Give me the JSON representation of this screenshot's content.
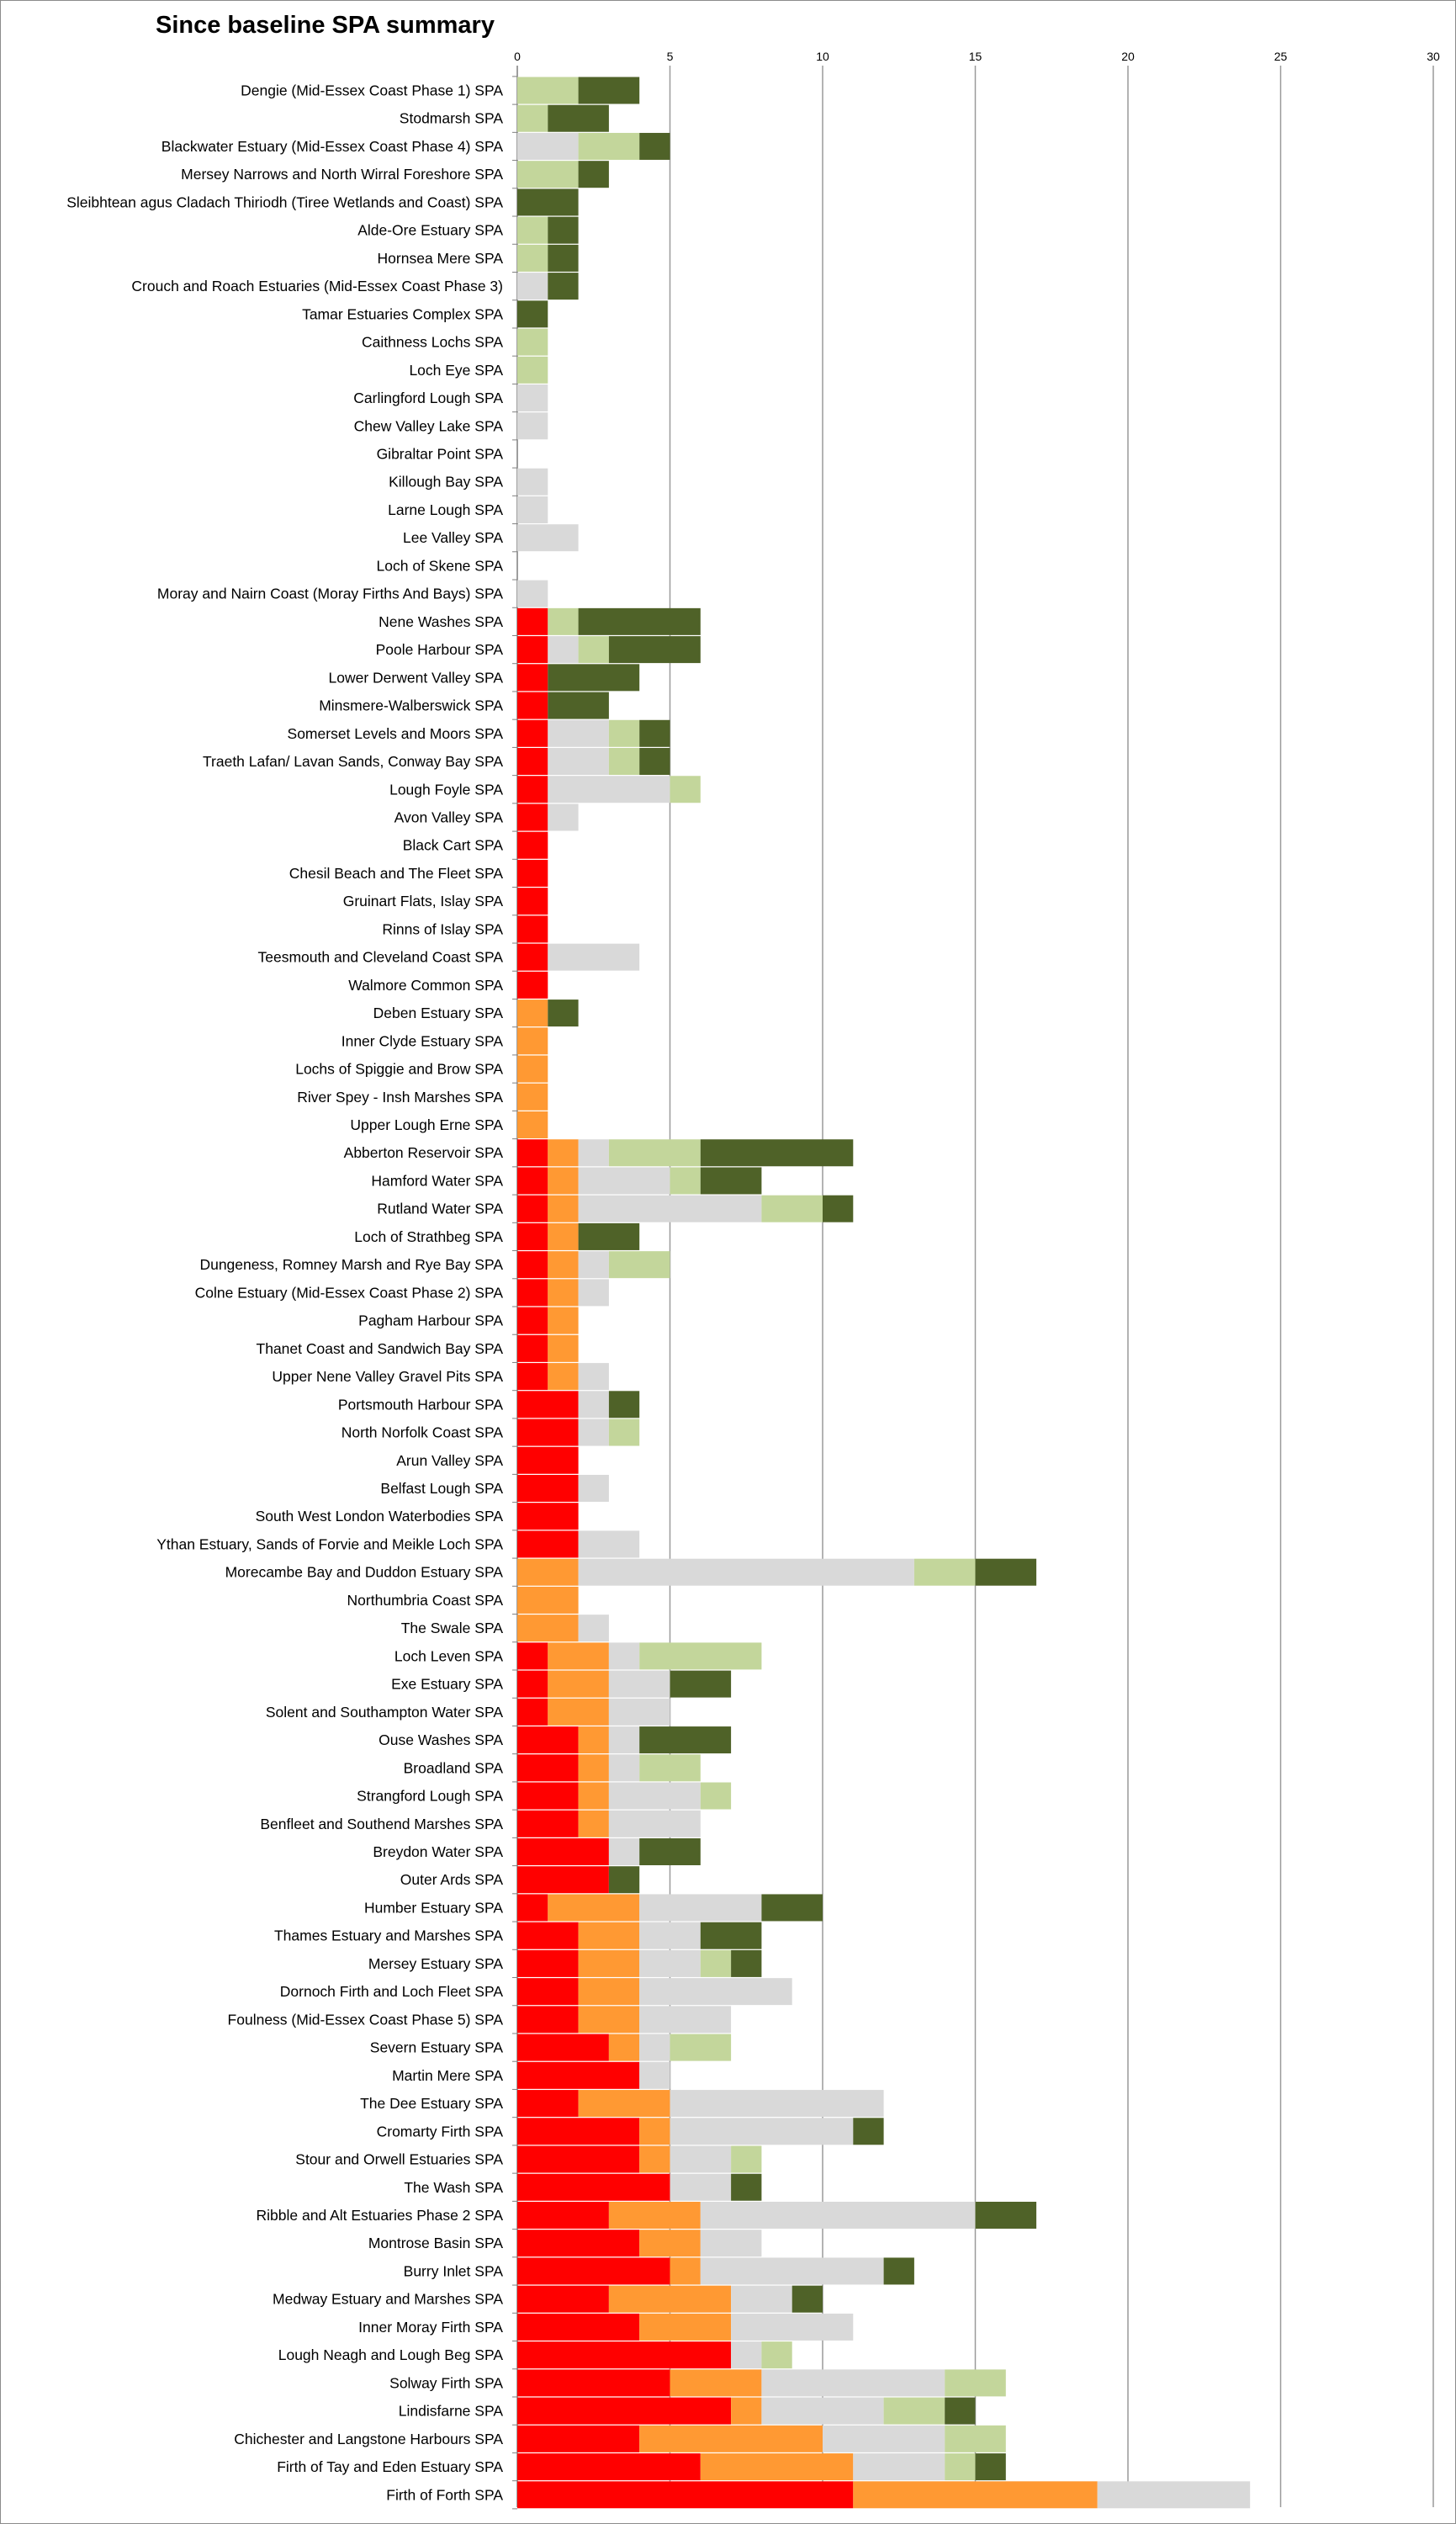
{
  "chart_data": {
    "type": "bar",
    "orientation": "horizontal",
    "stacked": true,
    "title": "Since baseline SPA summary",
    "xlim": [
      0,
      30
    ],
    "xticks": [
      0,
      5,
      10,
      15,
      20,
      25,
      30
    ],
    "grid": true,
    "legend": "none",
    "segment_colors": [
      "#ff0000",
      "#ff9933",
      "#d9d9d9",
      "#c3d69b",
      "#4f6228"
    ],
    "categories": [
      "Dengie (Mid-Essex Coast Phase 1) SPA",
      "Stodmarsh SPA",
      "Blackwater Estuary (Mid-Essex Coast Phase 4) SPA",
      "Mersey Narrows and North Wirral Foreshore SPA",
      "Sleibhtean agus Cladach Thiriodh (Tiree Wetlands and Coast) SPA",
      "Alde-Ore Estuary SPA",
      "Hornsea Mere SPA",
      "Crouch and Roach Estuaries (Mid-Essex Coast Phase 3)",
      "Tamar Estuaries Complex SPA",
      "Caithness Lochs SPA",
      "Loch Eye SPA",
      "Carlingford Lough SPA",
      "Chew Valley Lake SPA",
      "Gibraltar Point SPA",
      "Killough Bay SPA",
      "Larne Lough SPA",
      "Lee Valley SPA",
      "Loch of Skene SPA",
      "Moray and Nairn Coast (Moray Firths And Bays) SPA",
      "Nene Washes SPA",
      "Poole Harbour SPA",
      "Lower Derwent Valley SPA",
      "Minsmere-Walberswick SPA",
      "Somerset Levels and Moors SPA",
      "Traeth Lafan/ Lavan Sands, Conway Bay SPA",
      "Lough Foyle SPA",
      "Avon Valley SPA",
      "Black Cart SPA",
      "Chesil Beach and The Fleet SPA",
      "Gruinart Flats, Islay SPA",
      "Rinns of Islay SPA",
      "Teesmouth and Cleveland Coast SPA",
      "Walmore Common SPA",
      "Deben Estuary SPA",
      "Inner Clyde Estuary SPA",
      "Lochs of Spiggie and Brow SPA",
      "River Spey - Insh Marshes SPA",
      "Upper Lough Erne SPA",
      "Abberton Reservoir SPA",
      "Hamford Water SPA",
      "Rutland Water SPA",
      "Loch of Strathbeg SPA",
      "Dungeness, Romney Marsh and Rye Bay SPA",
      "Colne Estuary (Mid-Essex Coast Phase 2) SPA",
      "Pagham Harbour SPA",
      "Thanet Coast and Sandwich Bay SPA",
      "Upper Nene Valley Gravel Pits SPA",
      "Portsmouth Harbour SPA",
      "North Norfolk Coast SPA",
      "Arun Valley SPA",
      "Belfast Lough SPA",
      "South West London Waterbodies SPA",
      "Ythan Estuary, Sands of Forvie and Meikle Loch SPA",
      "Morecambe Bay and Duddon Estuary SPA",
      "Northumbria Coast SPA",
      "The Swale SPA",
      "Loch Leven SPA",
      "Exe Estuary SPA",
      "Solent and Southampton Water SPA",
      "Ouse Washes SPA",
      "Broadland SPA",
      "Strangford Lough SPA",
      "Benfleet and Southend Marshes SPA",
      "Breydon Water SPA",
      "Outer Ards SPA",
      "Humber Estuary SPA",
      "Thames Estuary and Marshes SPA",
      "Mersey Estuary SPA",
      "Dornoch Firth and Loch Fleet SPA",
      "Foulness (Mid-Essex Coast Phase 5) SPA",
      "Severn Estuary SPA",
      "Martin Mere SPA",
      "The Dee Estuary SPA",
      "Cromarty Firth SPA",
      "Stour and Orwell Estuaries SPA",
      "The Wash SPA",
      "Ribble and Alt Estuaries Phase 2 SPA",
      "Montrose Basin SPA",
      "Burry Inlet SPA",
      "Medway Estuary and Marshes SPA",
      "Inner Moray Firth SPA",
      "Lough Neagh and Lough Beg SPA",
      "Solway Firth SPA",
      "Lindisfarne SPA",
      "Chichester and Langstone Harbours SPA",
      "Firth of Tay and Eden Estuary SPA",
      "Firth of Forth SPA"
    ],
    "series": [
      {
        "color": "#ff0000",
        "values": [
          0,
          0,
          0,
          0,
          0,
          0,
          0,
          0,
          0,
          0,
          0,
          0,
          0,
          0,
          0,
          0,
          0,
          0,
          0,
          1,
          1,
          1,
          1,
          1,
          1,
          1,
          1,
          1,
          1,
          1,
          1,
          1,
          1,
          0,
          0,
          0,
          0,
          0,
          1,
          1,
          1,
          1,
          1,
          1,
          1,
          1,
          1,
          2,
          2,
          2,
          2,
          2,
          2,
          0,
          0,
          0,
          1,
          1,
          1,
          2,
          2,
          2,
          2,
          3,
          3,
          1,
          2,
          2,
          2,
          2,
          3,
          4,
          2,
          4,
          4,
          5,
          3,
          4,
          5,
          3,
          4,
          7,
          5,
          7,
          4,
          6,
          11
        ]
      },
      {
        "color": "#ff9933",
        "values": [
          0,
          0,
          0,
          0,
          0,
          0,
          0,
          0,
          0,
          0,
          0,
          0,
          0,
          0,
          0,
          0,
          0,
          0,
          0,
          0,
          0,
          0,
          0,
          0,
          0,
          0,
          0,
          0,
          0,
          0,
          0,
          0,
          0,
          1,
          1,
          1,
          1,
          1,
          1,
          1,
          1,
          1,
          1,
          1,
          1,
          1,
          1,
          0,
          0,
          0,
          0,
          0,
          0,
          2,
          2,
          2,
          2,
          2,
          2,
          1,
          1,
          1,
          1,
          0,
          0,
          3,
          2,
          2,
          2,
          2,
          1,
          0,
          3,
          1,
          1,
          0,
          3,
          2,
          1,
          4,
          3,
          0,
          3,
          1,
          6,
          5,
          8
        ]
      },
      {
        "color": "#d9d9d9",
        "values": [
          0,
          0,
          2,
          0,
          0,
          0,
          0,
          1,
          0,
          0,
          0,
          1,
          1,
          0,
          1,
          1,
          2,
          0,
          1,
          0,
          1,
          0,
          0,
          2,
          2,
          4,
          1,
          0,
          0,
          0,
          0,
          3,
          0,
          0,
          0,
          0,
          0,
          0,
          1,
          3,
          6,
          0,
          1,
          1,
          0,
          0,
          1,
          1,
          1,
          0,
          1,
          0,
          2,
          11,
          0,
          1,
          1,
          2,
          2,
          1,
          1,
          3,
          3,
          1,
          0,
          4,
          2,
          2,
          5,
          3,
          1,
          1,
          7,
          6,
          2,
          2,
          9,
          2,
          6,
          2,
          4,
          1,
          6,
          4,
          4,
          3,
          5
        ]
      },
      {
        "color": "#c3d69b",
        "values": [
          2,
          1,
          2,
          2,
          0,
          1,
          1,
          0,
          0,
          1,
          1,
          0,
          0,
          0,
          0,
          0,
          0,
          0,
          0,
          1,
          1,
          0,
          0,
          1,
          1,
          1,
          0,
          0,
          0,
          0,
          0,
          0,
          0,
          0,
          0,
          0,
          0,
          0,
          3,
          1,
          2,
          0,
          2,
          0,
          0,
          0,
          0,
          0,
          1,
          0,
          0,
          0,
          0,
          2,
          0,
          0,
          4,
          0,
          0,
          0,
          2,
          1,
          0,
          0,
          0,
          0,
          0,
          1,
          0,
          0,
          2,
          0,
          0,
          0,
          1,
          0,
          0,
          0,
          0,
          0,
          0,
          1,
          2,
          2,
          2,
          1,
          0
        ]
      },
      {
        "color": "#4f6228",
        "values": [
          2,
          2,
          1,
          1,
          2,
          1,
          1,
          1,
          1,
          0,
          0,
          0,
          0,
          0,
          0,
          0,
          0,
          0,
          0,
          4,
          3,
          3,
          2,
          1,
          1,
          0,
          0,
          0,
          0,
          0,
          0,
          0,
          0,
          1,
          0,
          0,
          0,
          0,
          5,
          2,
          1,
          2,
          0,
          0,
          0,
          0,
          0,
          1,
          0,
          0,
          0,
          0,
          0,
          2,
          0,
          0,
          0,
          2,
          0,
          3,
          0,
          0,
          0,
          2,
          1,
          2,
          2,
          1,
          0,
          0,
          0,
          0,
          0,
          1,
          0,
          1,
          2,
          0,
          1,
          1,
          0,
          0,
          0,
          1,
          0,
          1,
          0
        ]
      }
    ]
  }
}
